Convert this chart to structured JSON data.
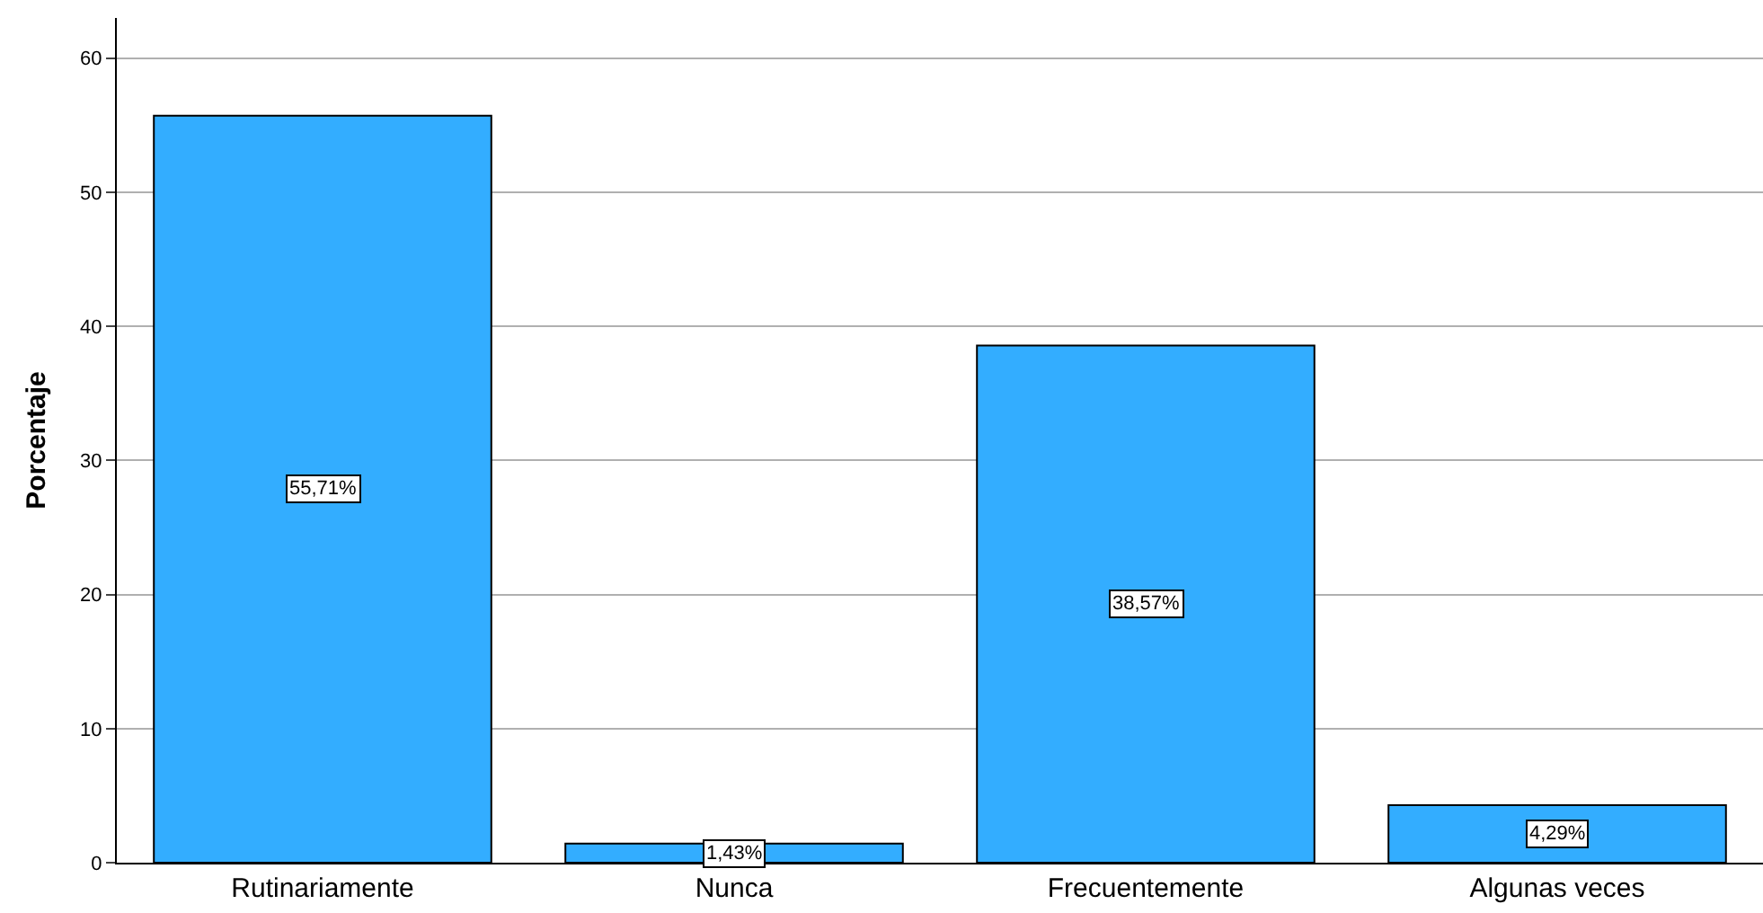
{
  "chart_data": {
    "type": "bar",
    "ylabel": "Porcentaje",
    "categories": [
      "Rutinariamente",
      "Nunca",
      "Frecuentemente",
      "Algunas veces"
    ],
    "values": [
      55.71,
      1.43,
      38.57,
      4.29
    ],
    "value_labels": [
      "55,71%",
      "1,43%",
      "38,57%",
      "4,29%"
    ],
    "color": "#33adff",
    "ylim": [
      0,
      63
    ],
    "yticks": [
      0,
      10,
      20,
      30,
      40,
      50,
      60
    ],
    "grid": "y"
  }
}
